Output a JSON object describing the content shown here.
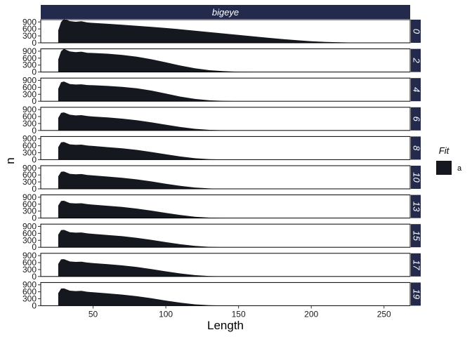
{
  "chart_data": {
    "type": "area",
    "facet_top_label": "bigeye",
    "facet_right_labels": [
      "0",
      "2",
      "4",
      "6",
      "8",
      "10",
      "13",
      "15",
      "17",
      "19"
    ],
    "xlabel": "Length",
    "ylabel": "n",
    "xlim": [
      14,
      268
    ],
    "ylim": [
      0,
      1000
    ],
    "x_ticks": [
      50,
      100,
      150,
      200,
      250
    ],
    "y_ticks": [
      0,
      300,
      600,
      900
    ],
    "legend": {
      "title": "Fit",
      "entries": [
        "a"
      ],
      "position": "right"
    },
    "grid": false,
    "colors": {
      "fill": "#15181e",
      "strip": "#232a4c",
      "strip_text": "#ffffff"
    },
    "series": [
      {
        "facet": "0",
        "x": [
          26,
          28,
          30,
          34,
          38,
          42,
          46,
          50,
          60,
          70,
          80,
          90,
          100,
          110,
          120,
          130,
          140,
          150,
          160,
          170,
          180,
          190,
          200,
          210,
          220,
          230,
          240,
          250,
          260,
          268
        ],
        "y": [
          540,
          900,
          1030,
          940,
          910,
          930,
          880,
          860,
          820,
          780,
          735,
          690,
          640,
          585,
          525,
          465,
          400,
          340,
          280,
          220,
          165,
          115,
          70,
          40,
          20,
          8,
          3,
          0,
          0,
          0
        ]
      },
      {
        "facet": "2",
        "x": [
          26,
          28,
          30,
          34,
          38,
          42,
          46,
          50,
          60,
          70,
          80,
          90,
          100,
          110,
          120,
          130,
          140,
          150,
          160,
          170,
          180,
          190,
          200,
          268
        ],
        "y": [
          540,
          900,
          1000,
          890,
          860,
          880,
          830,
          820,
          790,
          740,
          660,
          550,
          420,
          280,
          160,
          80,
          35,
          12,
          3,
          0,
          0,
          0,
          0,
          0
        ]
      },
      {
        "facet": "4",
        "x": [
          26,
          28,
          30,
          34,
          38,
          42,
          46,
          50,
          60,
          70,
          80,
          90,
          100,
          110,
          120,
          130,
          140,
          150,
          160,
          268
        ],
        "y": [
          540,
          820,
          850,
          740,
          720,
          730,
          700,
          690,
          660,
          620,
          560,
          460,
          330,
          200,
          100,
          40,
          12,
          3,
          0,
          0
        ]
      },
      {
        "facet": "6",
        "x": [
          26,
          28,
          30,
          34,
          38,
          42,
          46,
          50,
          60,
          70,
          80,
          90,
          100,
          110,
          120,
          130,
          140,
          150,
          268
        ],
        "y": [
          540,
          760,
          780,
          680,
          650,
          660,
          620,
          600,
          560,
          510,
          440,
          350,
          250,
          150,
          70,
          25,
          6,
          0,
          0
        ]
      },
      {
        "facet": "8",
        "x": [
          26,
          28,
          30,
          34,
          38,
          42,
          46,
          50,
          60,
          70,
          80,
          90,
          100,
          110,
          120,
          130,
          140,
          150,
          268
        ],
        "y": [
          540,
          750,
          760,
          660,
          640,
          650,
          610,
          590,
          540,
          490,
          420,
          330,
          230,
          135,
          60,
          20,
          5,
          0,
          0
        ]
      },
      {
        "facet": "10",
        "x": [
          26,
          28,
          30,
          34,
          38,
          42,
          46,
          50,
          60,
          70,
          80,
          90,
          100,
          110,
          120,
          130,
          140,
          150,
          268
        ],
        "y": [
          540,
          740,
          750,
          650,
          630,
          640,
          600,
          580,
          530,
          480,
          410,
          320,
          220,
          130,
          58,
          18,
          4,
          0,
          0
        ]
      },
      {
        "facet": "13",
        "x": [
          26,
          28,
          30,
          34,
          38,
          42,
          46,
          50,
          60,
          70,
          80,
          90,
          100,
          110,
          120,
          130,
          140,
          150,
          268
        ],
        "y": [
          540,
          740,
          750,
          650,
          630,
          640,
          600,
          580,
          530,
          480,
          410,
          320,
          220,
          130,
          58,
          18,
          4,
          0,
          0
        ]
      },
      {
        "facet": "15",
        "x": [
          26,
          28,
          30,
          34,
          38,
          42,
          46,
          50,
          60,
          70,
          80,
          90,
          100,
          110,
          120,
          130,
          140,
          150,
          268
        ],
        "y": [
          540,
          740,
          750,
          650,
          630,
          640,
          600,
          580,
          530,
          480,
          410,
          320,
          220,
          130,
          58,
          18,
          4,
          0,
          0
        ]
      },
      {
        "facet": "17",
        "x": [
          26,
          28,
          30,
          34,
          38,
          42,
          46,
          50,
          60,
          70,
          80,
          90,
          100,
          110,
          120,
          130,
          140,
          150,
          268
        ],
        "y": [
          540,
          740,
          750,
          650,
          630,
          640,
          600,
          580,
          530,
          480,
          410,
          320,
          220,
          130,
          58,
          18,
          4,
          0,
          0
        ]
      },
      {
        "facet": "19",
        "x": [
          26,
          28,
          30,
          34,
          38,
          42,
          46,
          50,
          60,
          70,
          80,
          90,
          100,
          110,
          120,
          130,
          140,
          150,
          268
        ],
        "y": [
          540,
          740,
          750,
          650,
          630,
          640,
          600,
          580,
          530,
          480,
          410,
          320,
          220,
          130,
          58,
          18,
          4,
          0,
          0
        ]
      }
    ]
  }
}
